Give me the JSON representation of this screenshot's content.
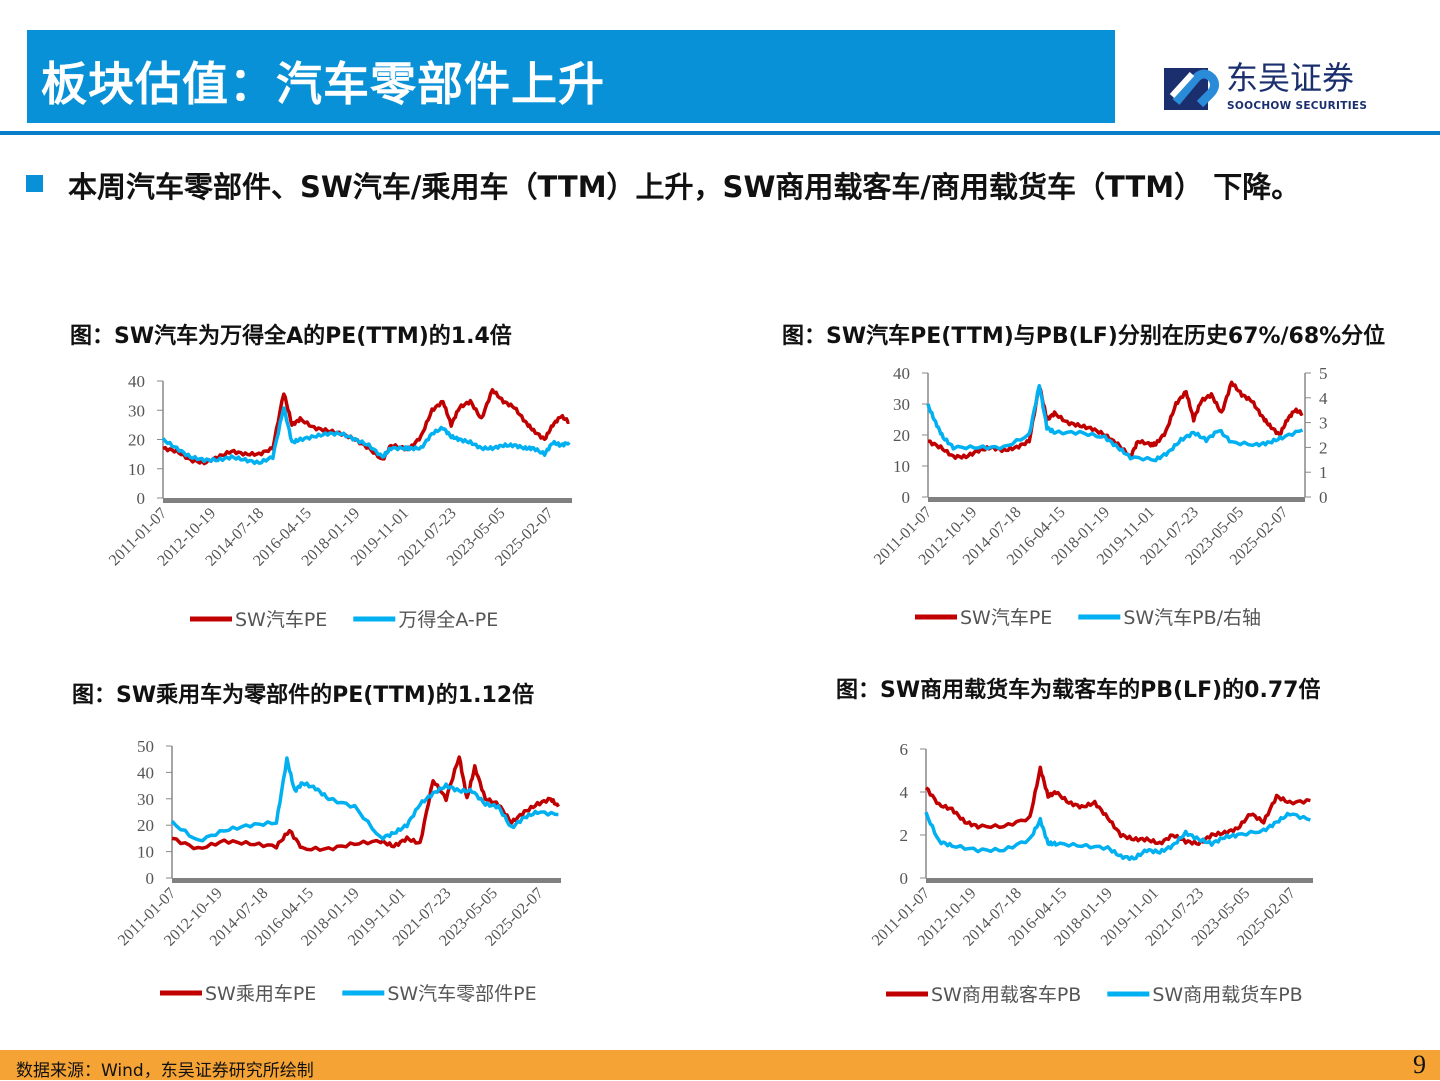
{
  "header": {
    "title": "板块估值：汽车零部件上升"
  },
  "logo": {
    "cn": "东吴证券",
    "en": "SOOCHOW SECURITIES"
  },
  "lead": "本周汽车零部件、SW汽车/乘用车（TTM）上升，SW商用载客车/商用载货车（TTM） 下降。",
  "footer": {
    "source": "数据来源：Wind，东吴证券研究所绘制",
    "page": "9"
  },
  "colors": {
    "red": "#C00000",
    "blue": "#00B0F0",
    "header": "#0891D6",
    "footer": "#F5A334"
  },
  "chart_data": [
    {
      "type": "line",
      "title": "图：SW汽车为万得全A的PE(TTM)的1.4倍",
      "x_tick_labels": [
        "2011-01-07",
        "2012-10-19",
        "2014-07-18",
        "2016-04-15",
        "2018-01-19",
        "2019-11-01",
        "2021-07-23",
        "2023-05-05",
        "2025-02-07"
      ],
      "x_ticks": [
        2011.02,
        2012.8,
        2014.55,
        2016.29,
        2018.05,
        2019.83,
        2021.56,
        2023.34,
        2025.1
      ],
      "xlim": [
        2011,
        2025.9
      ],
      "ylim": [
        0,
        40
      ],
      "yticks": [
        0,
        10,
        20,
        30,
        40
      ],
      "legend": "bottom",
      "series": [
        {
          "name": "SW汽车PE",
          "color": "#C00000",
          "axis": "left",
          "x": [
            2011,
            2011.5,
            2012,
            2012.5,
            2013,
            2013.5,
            2014,
            2014.5,
            2015,
            2015.4,
            2015.7,
            2016,
            2016.5,
            2017,
            2017.5,
            2018,
            2018.5,
            2019,
            2019.3,
            2019.8,
            2020,
            2020.4,
            2020.8,
            2021.2,
            2021.5,
            2021.8,
            2022.2,
            2022.6,
            2023,
            2023.4,
            2023.8,
            2024.2,
            2024.5,
            2024.9,
            2025.2,
            2025.5,
            2025.8
          ],
          "values": [
            17,
            16,
            13,
            12,
            14,
            16,
            15,
            15,
            17,
            36,
            25,
            27,
            24,
            23,
            22,
            20,
            17,
            13,
            18,
            17,
            17,
            21,
            30,
            33,
            25,
            31,
            33,
            27,
            37,
            33,
            31,
            26,
            23,
            20,
            25,
            28,
            26
          ]
        },
        {
          "name": "万得全A-PE",
          "color": "#00B0F0",
          "axis": "left",
          "x": [
            2011,
            2011.5,
            2012,
            2012.5,
            2013,
            2013.5,
            2014,
            2014.5,
            2015,
            2015.4,
            2015.7,
            2016,
            2016.5,
            2017,
            2017.5,
            2018,
            2018.5,
            2019,
            2019.3,
            2019.8,
            2020,
            2020.4,
            2020.8,
            2021.2,
            2021.5,
            2021.8,
            2022.2,
            2022.6,
            2023,
            2023.4,
            2023.8,
            2024.2,
            2024.5,
            2024.9,
            2025.2,
            2025.5,
            2025.8
          ],
          "values": [
            20,
            17,
            14,
            13,
            13,
            14,
            13,
            12,
            14,
            31,
            19,
            20,
            21,
            22,
            22,
            20,
            18,
            14,
            17,
            17,
            17,
            17,
            22,
            24,
            21,
            20,
            19,
            17,
            17,
            18,
            18,
            17,
            17,
            15,
            19,
            18,
            19
          ]
        }
      ]
    },
    {
      "type": "line",
      "title": "图：SW汽车PE(TTM)与PB(LF)分别在历史67%/68%分位",
      "x_tick_labels": [
        "2011-01-07",
        "2012-10-19",
        "2014-07-18",
        "2016-04-15",
        "2018-01-19",
        "2019-11-01",
        "2021-07-23",
        "2023-05-05",
        "2025-02-07"
      ],
      "x_ticks": [
        2011.02,
        2012.8,
        2014.55,
        2016.29,
        2018.05,
        2019.83,
        2021.56,
        2023.34,
        2025.1
      ],
      "xlim": [
        2011,
        2025.9
      ],
      "ylim": [
        0,
        40
      ],
      "yticks": [
        0,
        10,
        20,
        30,
        40
      ],
      "y2lim": [
        0,
        5
      ],
      "y2ticks": [
        0,
        1,
        2,
        3,
        4,
        5
      ],
      "legend": "bottom",
      "series": [
        {
          "name": "SW汽车PE",
          "color": "#C00000",
          "axis": "left",
          "x": [
            2011,
            2011.5,
            2012,
            2012.5,
            2013,
            2013.5,
            2014,
            2014.5,
            2015,
            2015.4,
            2015.7,
            2016,
            2016.5,
            2017,
            2017.5,
            2018,
            2018.5,
            2019,
            2019.3,
            2019.8,
            2020,
            2020.4,
            2020.8,
            2021.2,
            2021.5,
            2021.8,
            2022.2,
            2022.6,
            2023,
            2023.4,
            2023.8,
            2024.2,
            2024.5,
            2024.9,
            2025.2,
            2025.5,
            2025.8
          ],
          "values": [
            18,
            16,
            13,
            13,
            15,
            16,
            15,
            16,
            18,
            36,
            25,
            27,
            24,
            23,
            22,
            20,
            17,
            13,
            18,
            17,
            17,
            21,
            30,
            34,
            25,
            31,
            33,
            27,
            37,
            33,
            31,
            26,
            23,
            20,
            25,
            28,
            27
          ]
        },
        {
          "name": "SW汽车PB/右轴",
          "color": "#00B0F0",
          "axis": "right",
          "x": [
            2011,
            2011.3,
            2011.6,
            2012,
            2013,
            2014,
            2015,
            2015.4,
            2015.7,
            2016,
            2017,
            2018,
            2018.5,
            2019,
            2020,
            2020.5,
            2021,
            2021.5,
            2022,
            2022.5,
            2023,
            2024,
            2024.5,
            2025,
            2025.8
          ],
          "values": [
            3.7,
            3.0,
            2.4,
            2.0,
            2.0,
            2.0,
            2.5,
            4.5,
            2.8,
            2.6,
            2.6,
            2.4,
            2.0,
            1.6,
            1.5,
            1.8,
            2.3,
            2.6,
            2.3,
            2.7,
            2.2,
            2.1,
            2.2,
            2.4,
            2.7
          ]
        }
      ]
    },
    {
      "type": "line",
      "title": "图：SW乘用车为零部件的PE(TTM)的1.12倍",
      "x_tick_labels": [
        "2011-01-07",
        "2012-10-19",
        "2014-07-18",
        "2016-04-15",
        "2018-01-19",
        "2019-11-01",
        "2021-07-23",
        "2023-05-05",
        "2025-02-07"
      ],
      "x_ticks": [
        2011.02,
        2012.8,
        2014.55,
        2016.29,
        2018.05,
        2019.83,
        2021.56,
        2023.34,
        2025.1
      ],
      "xlim": [
        2011,
        2025.9
      ],
      "ylim": [
        0,
        50
      ],
      "yticks": [
        0,
        10,
        20,
        30,
        40,
        50
      ],
      "legend": "bottom",
      "series": [
        {
          "name": "SW乘用车PE",
          "color": "#C00000",
          "axis": "left",
          "x": [
            2011,
            2012,
            2013,
            2014,
            2015,
            2015.5,
            2016,
            2017,
            2018,
            2019,
            2019.5,
            2020,
            2020.5,
            2021,
            2021.5,
            2022,
            2022.3,
            2022.6,
            2023,
            2023.5,
            2024,
            2024.5,
            2025,
            2025.5,
            2025.8
          ],
          "values": [
            15,
            11,
            14,
            13,
            12,
            18,
            11,
            11,
            13,
            14,
            12,
            15,
            13,
            37,
            30,
            46,
            30,
            42,
            30,
            28,
            21,
            25,
            28,
            30,
            27
          ]
        },
        {
          "name": "SW汽车零部件PE",
          "color": "#00B0F0",
          "axis": "left",
          "x": [
            2011,
            2012,
            2013,
            2014,
            2015,
            2015.4,
            2015.7,
            2016,
            2016.5,
            2017,
            2018,
            2019,
            2019.5,
            2020,
            2020.5,
            2021,
            2021.5,
            2022,
            2022.5,
            2023,
            2023.5,
            2024,
            2024.5,
            2025,
            2025.8
          ],
          "values": [
            21,
            14,
            18,
            20,
            21,
            45,
            33,
            36,
            34,
            30,
            27,
            15,
            17,
            20,
            28,
            32,
            35,
            33,
            33,
            28,
            27,
            19,
            23,
            25,
            24
          ]
        }
      ]
    },
    {
      "type": "line",
      "title": "图：SW商用载货车为载客车的PB(LF)的0.77倍",
      "x_tick_labels": [
        "2011-01-07",
        "2012-10-19",
        "2014-07-18",
        "2016-04-15",
        "2018-01-19",
        "2019-11-01",
        "2021-07-23",
        "2023-05-05",
        "2025-02-07"
      ],
      "x_ticks": [
        2011.02,
        2012.8,
        2014.55,
        2016.29,
        2018.05,
        2019.83,
        2021.56,
        2023.34,
        2025.1
      ],
      "xlim": [
        2011,
        2025.9
      ],
      "ylim": [
        0,
        6
      ],
      "yticks": [
        0,
        2,
        4,
        6
      ],
      "legend": "bottom",
      "series": [
        {
          "name": "SW商用载客车PB",
          "color": "#C00000",
          "axis": "left",
          "x": [
            2011,
            2011.5,
            2012,
            2012.5,
            2013,
            2014,
            2015,
            2015.4,
            2015.7,
            2016,
            2016.5,
            2017,
            2017.5,
            2018,
            2018.5,
            2019,
            2019.5,
            2020,
            2020.5,
            2021,
            2021.5,
            2022,
            2022.5,
            2023,
            2023.5,
            2024,
            2024.5,
            2025,
            2025.8
          ],
          "values": [
            4.2,
            3.4,
            3.2,
            2.6,
            2.4,
            2.4,
            2.8,
            5.1,
            3.8,
            4.0,
            3.5,
            3.3,
            3.5,
            2.8,
            2.0,
            1.8,
            1.8,
            1.6,
            2.0,
            1.7,
            1.6,
            2.0,
            2.1,
            2.3,
            3.0,
            2.6,
            3.8,
            3.5,
            3.6
          ]
        },
        {
          "name": "SW商用载货车PB",
          "color": "#00B0F0",
          "axis": "left",
          "x": [
            2011,
            2011.5,
            2012,
            2013,
            2014,
            2015,
            2015.4,
            2015.7,
            2016,
            2017,
            2018,
            2018.5,
            2019,
            2019.5,
            2020,
            2020.5,
            2021,
            2021.5,
            2022,
            2022.5,
            2023,
            2024,
            2024.5,
            2025,
            2025.8
          ],
          "values": [
            3.0,
            1.7,
            1.5,
            1.3,
            1.3,
            1.8,
            2.7,
            1.6,
            1.6,
            1.5,
            1.4,
            1.0,
            0.9,
            1.3,
            1.2,
            1.5,
            2.1,
            1.8,
            1.6,
            1.9,
            2.0,
            2.2,
            2.6,
            3.0,
            2.7
          ]
        }
      ]
    }
  ]
}
